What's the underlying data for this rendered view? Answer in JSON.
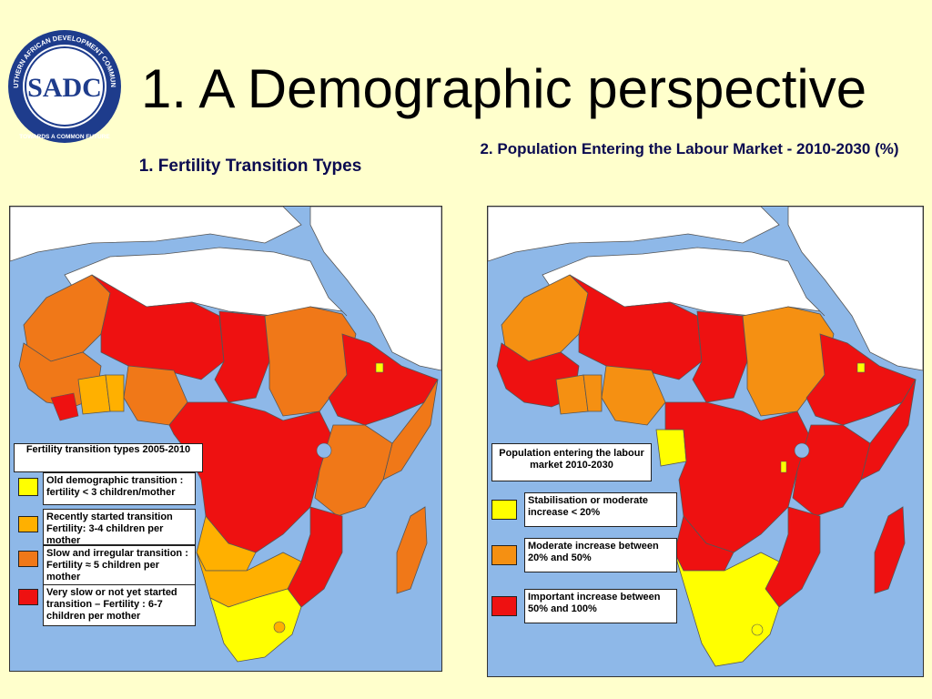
{
  "page": {
    "title": "1. A Demographic perspective"
  },
  "logo": {
    "text_outer": "SOUTHERN AFRICAN DEVELOPMENT COMMUNITY",
    "text_inner": "TOWARDS A COMMON FUTURE",
    "monogram": "SADC"
  },
  "left_map": {
    "title": "1. Fertility Transition Types",
    "legend_title": "Fertility transition types 2005-2010",
    "legend": [
      {
        "label": "Old demographic transition : fertility < 3 children/mother",
        "color": "#ffff00"
      },
      {
        "label": "Recently started transition Fertility: 3-4 children per mother",
        "color": "#ffb000"
      },
      {
        "label": "Slow and irregular transition : Fertility ≈ 5 children per mother",
        "color": "#f07818"
      },
      {
        "label": "Very slow or not yet started transition – Fertility : 6-7 children per mother",
        "color": "#ee1111"
      }
    ]
  },
  "right_map": {
    "title": "2. Population Entering the Labour Market - 2010-2030 (%)",
    "legend_title": "Population entering the labour market 2010-2030",
    "legend": [
      {
        "label": "Stabilisation or moderate increase < 20%",
        "color": "#ffff00"
      },
      {
        "label": "Moderate increase between 20% and 50%",
        "color": "#f59012"
      },
      {
        "label": "Important increase between 50% and 100%",
        "color": "#ee1111"
      }
    ]
  },
  "colors": {
    "background": "#ffffcc",
    "sea": "#8eb8e8",
    "non_africa": "#ffffff",
    "title_blue": "#0a0a50",
    "logo_blue": "#1e3c8c"
  }
}
